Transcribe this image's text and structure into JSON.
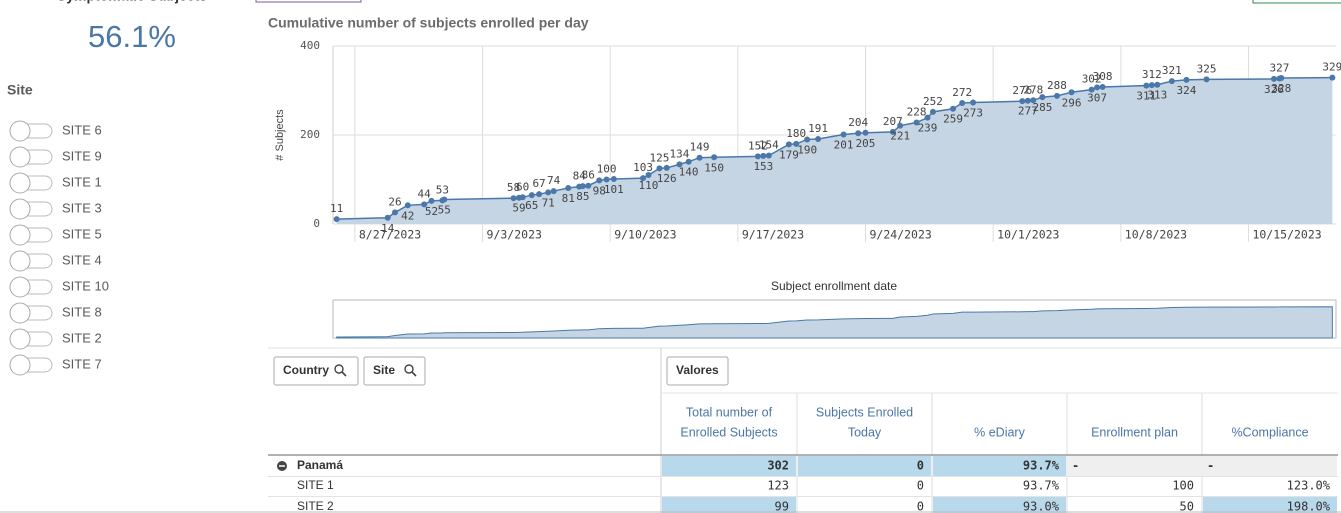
{
  "kpi": {
    "title": "Symptomatic Subjects",
    "value": "56.1%"
  },
  "filter": {
    "title": "Site",
    "items": [
      "SITE 6",
      "SITE 9",
      "SITE 1",
      "SITE 3",
      "SITE 5",
      "SITE 4",
      "SITE 10",
      "SITE 8",
      "SITE 2",
      "SITE 7"
    ]
  },
  "chart_data": {
    "type": "area",
    "title": "Cumulative number of subjects enrolled per day",
    "x_label": "Subject enrollment date",
    "y_label": "# Subjects",
    "color": "#4a78aa",
    "fill": "#c5d5e4",
    "xlim": [
      -1.2,
      53.8
    ],
    "xticks": [
      {
        "value": 0,
        "label": "8/27/2023"
      },
      {
        "value": 7,
        "label": "9/3/2023"
      },
      {
        "value": 14,
        "label": "9/10/2023"
      },
      {
        "value": 21,
        "label": "9/17/2023"
      },
      {
        "value": 28,
        "label": "9/24/2023"
      },
      {
        "value": 35,
        "label": "10/1/2023"
      },
      {
        "value": 42,
        "label": "10/8/2023"
      },
      {
        "value": 49,
        "label": "10/15/2023"
      }
    ],
    "ylim": [
      0,
      400
    ],
    "yticks": [
      0,
      200,
      400
    ],
    "grid": true,
    "x": [
      -1.0,
      1.8,
      2.2,
      2.9,
      3.8,
      4.2,
      4.8,
      4.9,
      8.7,
      9.0,
      9.2,
      9.7,
      10.1,
      10.6,
      10.9,
      11.7,
      12.3,
      12.5,
      12.8,
      13.4,
      13.8,
      14.2,
      15.8,
      16.1,
      16.7,
      17.1,
      17.8,
      18.3,
      18.9,
      19.7,
      22.1,
      22.4,
      22.7,
      23.8,
      24.2,
      24.8,
      25.4,
      26.8,
      27.6,
      28.0,
      29.5,
      29.9,
      30.8,
      31.4,
      31.7,
      32.8,
      33.3,
      33.9,
      36.6,
      36.9,
      37.2,
      37.7,
      38.5,
      39.3,
      40.4,
      40.7,
      41.0,
      43.4,
      43.7,
      44.0,
      44.8,
      45.6,
      46.7,
      50.4,
      50.7,
      50.8,
      53.6
    ],
    "values": [
      11,
      14,
      26,
      42,
      44,
      52,
      53,
      55,
      58,
      59,
      60,
      65,
      67,
      71,
      74,
      81,
      84,
      85,
      86,
      98,
      100,
      101,
      103,
      110,
      125,
      126,
      134,
      140,
      149,
      150,
      152,
      153,
      154,
      179,
      180,
      190,
      191,
      201,
      204,
      205,
      207,
      221,
      228,
      239,
      252,
      259,
      272,
      273,
      276,
      277,
      278,
      285,
      288,
      296,
      302,
      307,
      308,
      311,
      312,
      313,
      321,
      324,
      325,
      326,
      327,
      328,
      329
    ]
  },
  "table": {
    "dimensions": [
      "Country",
      "Site"
    ],
    "measures_button": "Valores",
    "columns": [
      [
        "Total number of",
        "Enrolled Subjects"
      ],
      [
        "Subjects Enrolled",
        "Today"
      ],
      [
        "% eDiary"
      ],
      [
        "Enrollment plan"
      ],
      [
        "%Compliance"
      ]
    ],
    "rows": [
      {
        "label": "Panamá",
        "cells": [
          "302",
          "0",
          "93.7%",
          "-",
          "-"
        ]
      },
      {
        "label": "SITE 1",
        "cells": [
          "123",
          "0",
          "93.7%",
          "100",
          "123.0%"
        ]
      },
      {
        "label": "SITE 2",
        "cells": [
          "99",
          "0",
          "93.0%",
          "50",
          "198.0%"
        ]
      }
    ]
  }
}
